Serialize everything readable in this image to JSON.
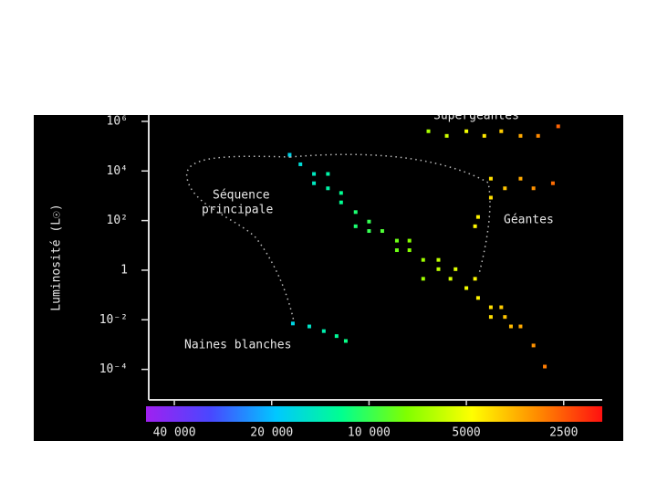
{
  "chart_data": {
    "type": "scatter",
    "ylabel": "Luminosité (L☉)",
    "annotations": [
      {
        "lines": [
          "Supergéantes"
        ]
      },
      {
        "lines": [
          "Géantes"
        ]
      },
      {
        "lines": [
          "Séquence",
          "principale"
        ]
      },
      {
        "lines": [
          "Naines blanches"
        ]
      }
    ],
    "xscale": "log",
    "yscale": "log",
    "xlim": [
      48000,
      1900
    ],
    "xticks": [
      {
        "value": 40000,
        "label": "40 000"
      },
      {
        "value": 20000,
        "label": "20 000"
      },
      {
        "value": 10000,
        "label": "10 000"
      },
      5000,
      2500
    ],
    "ylim": [
      5.9e-06,
      1800000
    ],
    "yticks": [
      {
        "value": 1000000,
        "label": "10⁶"
      },
      {
        "value": 10000,
        "label": "10⁴"
      },
      {
        "value": 100,
        "label": "10²"
      },
      1,
      {
        "value": 0.01,
        "label": "10⁻²"
      },
      {
        "value": 0.0001,
        "label": "10⁻⁴"
      }
    ],
    "colormap": [
      "#a020f0",
      "#4848ff",
      "#00c8ff",
      "#00ff90",
      "#80ff00",
      "#ffff00",
      "#ff8c00",
      "#ff1010"
    ],
    "x": [
      17600,
      16300,
      14800,
      14800,
      13400,
      12200,
      11000,
      10000,
      9100,
      8200,
      7500,
      6800,
      6100,
      5600,
      5000,
      4600,
      4200,
      3800,
      3400,
      3100,
      2860,
      13400,
      11000,
      7500,
      6100,
      5400,
      4700,
      3900,
      3640,
      4200,
      6800,
      8200,
      10000,
      12200,
      4200,
      3800,
      3400,
      3100,
      2700,
      4600,
      4700,
      4200,
      6550,
      5750,
      5000,
      4400,
      3900,
      3400,
      3000,
      2600,
      17200,
      15300,
      13800,
      12600,
      11800
    ],
    "values": [
      45000,
      18600,
      7600,
      3200,
      2000,
      540,
      220,
      91,
      38,
      15.5,
      6.4,
      2.6,
      1.1,
      0.45,
      0.19,
      0.076,
      0.032,
      0.013,
      0.0054,
      0.00092,
      0.00013,
      7600,
      59,
      15.5,
      2.6,
      1.1,
      0.45,
      0.032,
      0.0054,
      0.013,
      0.45,
      6.4,
      38,
      1300,
      4900,
      2000,
      4900,
      2000,
      3200,
      140,
      59,
      840,
      400000,
      260000,
      400000,
      260000,
      400000,
      260000,
      260000,
      630000,
      0.0071,
      0.0054,
      0.0035,
      0.0022,
      0.0014
    ]
  }
}
